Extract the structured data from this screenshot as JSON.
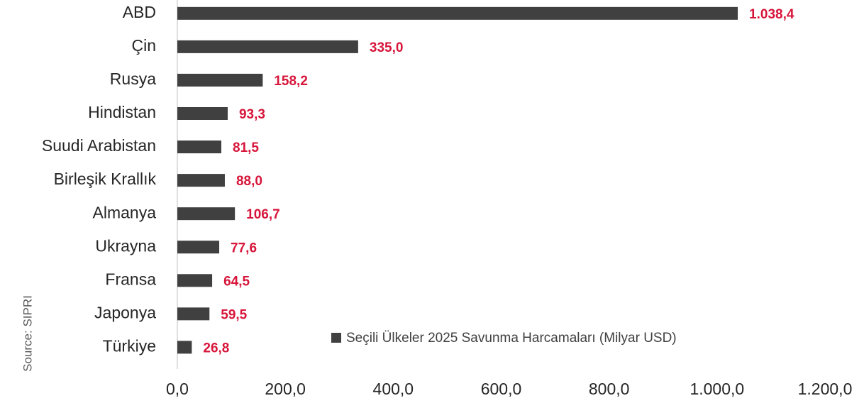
{
  "chart_data": {
    "type": "bar",
    "orientation": "horizontal",
    "source": "Source: SIPRI",
    "categories": [
      "ABD",
      "Çin",
      "Rusya",
      "Hindistan",
      "Suudi Arabistan",
      "Birleşik Krallık",
      "Almanya",
      "Ukrayna",
      "Fransa",
      "Japonya",
      "Türkiye"
    ],
    "series": [
      {
        "name": "Seçili Ülkeler 2025 Savunma Harcamaları (Milyar USD)",
        "color": "#404040",
        "values": [
          1038.4,
          335.0,
          158.2,
          93.3,
          81.5,
          88.0,
          106.7,
          77.6,
          64.5,
          59.5,
          26.8
        ],
        "value_labels": [
          "1.038,4",
          "335,0",
          "158,2",
          "93,3",
          "81,5",
          "88,0",
          "106,7",
          "77,6",
          "64,5",
          "59,5",
          "26,8"
        ]
      }
    ],
    "value_label_color": "#d7153a",
    "xlim": [
      0,
      1200
    ],
    "xticks": [
      {
        "value": 0,
        "label": "0,0"
      },
      {
        "value": 200,
        "label": "200,0"
      },
      {
        "value": 400,
        "label": "400,0"
      },
      {
        "value": 600,
        "label": "600,0"
      },
      {
        "value": 800,
        "label": "800,0"
      },
      {
        "value": 1000,
        "label": "1.000,0"
      },
      {
        "value": 1200,
        "label": "1.200,0"
      }
    ],
    "grid": false,
    "legend": "bottom-right"
  }
}
